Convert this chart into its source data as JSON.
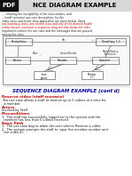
{
  "bg_color": "#ffffff",
  "top_bar_color": "#d8d8d8",
  "title_text": "NCE DIAGRAM EXAMPLE",
  "pdf_label": "PDF",
  "body_text_lines": [
    "..., showing the navigability of the associations, and",
    "...(staff scenario) use-case description, for the",
    "video sales and rental shop application are given below. Using",
    "one boundary class, one control class and any of the domain model",
    "entity classes, construct a sequence diagram that shows the roles",
    "required to realize this use case and the messages that are passed",
    "among the roles."
  ],
  "red_text_indices": [
    3,
    4
  ],
  "diagram_section_title": "SEQUENCE DIAGRAM EXAMPLE (cont'd)",
  "section_title_color": "#0000bb",
  "subsection_title": "Reserve video (staff scenario)",
  "subsection_color": "#cc0000",
  "para1_lines": [
    "This use case allows a staff to reserve up to 5 videos at a time for",
    "  a member."
  ],
  "actors_label": "Actors",
  "actors_color": "#cc0000",
  "actors_text": "Invoked by Staff",
  "precond_label": "Preconditions",
  "precond_color": "#cc0000",
  "precond_lines": [
    "1.  The staff has successfully logged on to the system and the",
    "  member has less than 5 videos reserved."
  ],
  "basic_label": "Basic Path",
  "basic_color": "#cc0000",
  "basic_lines": [
    "1.  The use case begins when the user selects Reserve a video.",
    "2.  The system prompts the staff to input the member number and",
    "  the video ID."
  ]
}
